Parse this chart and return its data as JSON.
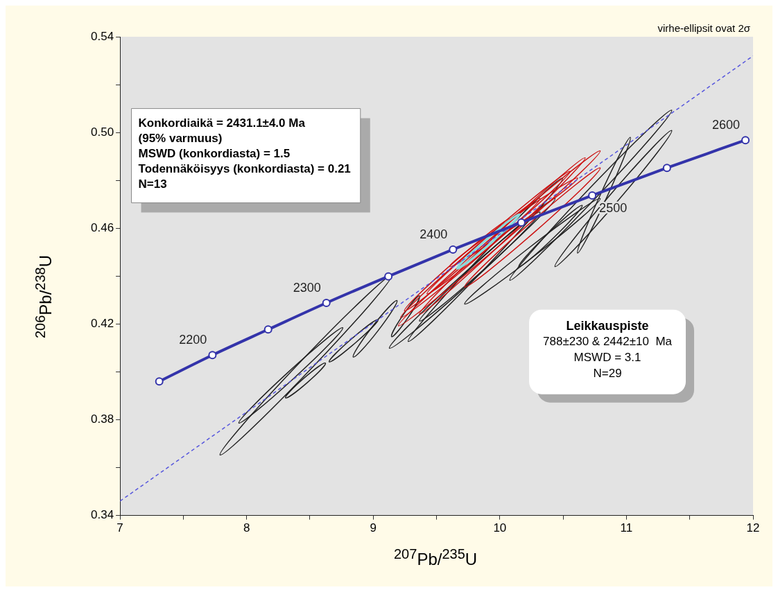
{
  "chart_data": {
    "type": "line",
    "xlabel": "$^{207}$Pb/$^{235}$U",
    "ylabel": "$^{206}$Pb/$^{238}$U",
    "xlim": [
      7,
      12
    ],
    "ylim": [
      0.34,
      0.54
    ],
    "xticks": [
      7,
      {
        "value": 7.5,
        "label": null
      },
      8,
      {
        "value": 8.5,
        "label": null
      },
      9,
      {
        "value": 9.5,
        "label": null
      },
      10,
      {
        "value": 10.5,
        "label": null
      },
      11,
      {
        "value": 11.5,
        "label": null
      },
      12
    ],
    "yticks": [
      0.34,
      {
        "value": 0.36,
        "label": null
      },
      0.38,
      {
        "value": 0.4,
        "label": null
      },
      0.42,
      {
        "value": 0.44,
        "label": null
      },
      0.46,
      {
        "value": 0.48,
        "label": null
      },
      {
        "value": 0.5,
        "label": "0.50"
      },
      {
        "value": 0.52,
        "label": null
      },
      0.54
    ],
    "marker": "none",
    "line_style": "solid",
    "series": [
      {
        "color": "#3333aa",
        "marker": "circle",
        "x": [
          7.31,
          7.73,
          8.17,
          8.63,
          9.12,
          9.63,
          10.17,
          10.73,
          11.32,
          11.94
        ],
        "values": [
          0.396,
          0.407,
          0.4177,
          0.4288,
          0.4399,
          0.4511,
          0.4624,
          0.4737,
          0.4852,
          0.4968
        ]
      },
      {
        "color": "#5555dd",
        "line_style": "dashed",
        "x": [
          7,
          12
        ],
        "values": [
          0.346,
          0.532
        ]
      }
    ],
    "annotations": [
      "Konkordiaikä = 2431.1±4.0 Ma\n(95% varmuus)\nMSWD (konkordiasta) = 1.5\nTodennäköisyys (konkordiasta) = 0.21\nN=13",
      "Leikkauspiste\n788±230 & 2442±10  Ma\nMSWD = 3.1\nN=29",
      "virhe-ellipsit ovat 2σ",
      {
        "text": "2200",
        "x": 7.73,
        "y": 0.407
      },
      {
        "text": "2300",
        "x": 8.63,
        "y": 0.4288
      },
      {
        "text": "2400",
        "x": 9.63,
        "y": 0.4511
      },
      {
        "text": "2500",
        "x": 10.73,
        "y": 0.4737
      },
      {
        "text": "2600",
        "x": 11.94,
        "y": 0.4968
      }
    ]
  }
}
